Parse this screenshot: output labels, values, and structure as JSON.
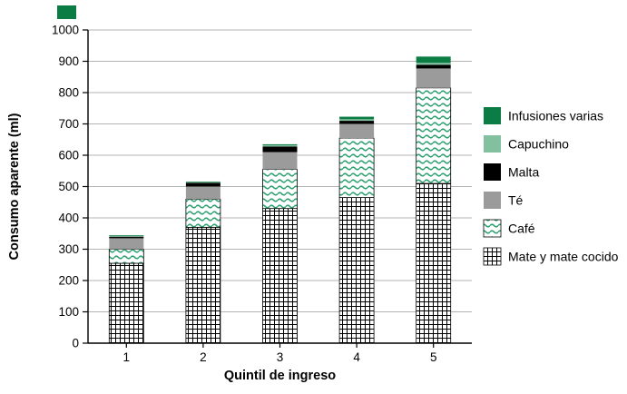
{
  "page": {
    "corner_marker_color": "#0b7d44",
    "background": "#ffffff"
  },
  "chart_data": {
    "type": "bar",
    "subtype": "stacked-vertical",
    "title": "",
    "xlabel": "Quintil de ingreso",
    "ylabel": "Consumo aparente (ml)",
    "ylim": [
      0,
      1000
    ],
    "ytick_step": 100,
    "ytick_labels": [
      "0",
      "100",
      "200",
      "300",
      "400",
      "500",
      "600",
      "700",
      "800",
      "900",
      "1000"
    ],
    "grid": "horizontal",
    "categories": [
      "1",
      "2",
      "3",
      "4",
      "5"
    ],
    "series": [
      {
        "name": "Mate y mate cocido",
        "fill": "pattern-crosshatch",
        "values": [
          255,
          370,
          430,
          465,
          510
        ]
      },
      {
        "name": "Café",
        "fill": "pattern-waves",
        "values": [
          45,
          90,
          125,
          190,
          305
        ]
      },
      {
        "name": "Té",
        "fill": "#9b9b9b",
        "values": [
          35,
          40,
          55,
          45,
          62
        ]
      },
      {
        "name": "Malta",
        "fill": "#000000",
        "values": [
          5,
          12,
          18,
          10,
          12
        ]
      },
      {
        "name": "Capuchino",
        "fill": "#82c0a0",
        "values": [
          3,
          2,
          4,
          5,
          6
        ]
      },
      {
        "name": "Infusiones varias",
        "fill": "#0b7d44",
        "values": [
          2,
          2,
          3,
          8,
          20
        ]
      }
    ],
    "totals": [
      345,
      516,
      635,
      723,
      915
    ],
    "legend": [
      "Infusiones varias",
      "Capuchino",
      "Malta",
      "Té",
      "Café",
      "Mate y mate cocido"
    ],
    "legend_position": "right",
    "pattern_colors": {
      "crosshatch_line": "#000000",
      "waves_line": "#2ea172",
      "pattern_background": "#ffffff"
    }
  }
}
